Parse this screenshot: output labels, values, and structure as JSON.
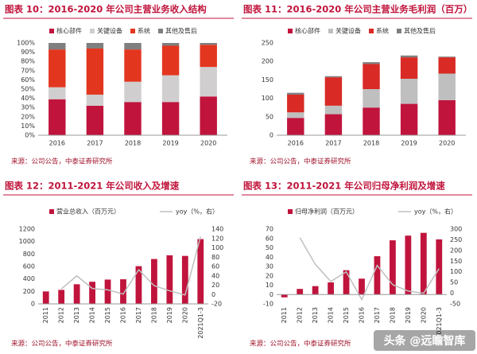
{
  "chart_data": [
    {
      "type": "bar",
      "stacked": true,
      "title": "图表 10：2016-2020 年公司主营业务收入结构",
      "source": "来源：公司公告，中泰证券研究所",
      "categories": [
        "2016",
        "2017",
        "2018",
        "2019",
        "2020"
      ],
      "series": [
        {
          "name": "核心部件",
          "color": "#c0143c",
          "values": [
            39,
            32,
            36,
            36,
            42
          ]
        },
        {
          "name": "关键设备",
          "color": "#d0cece",
          "values": [
            13,
            12,
            22,
            29,
            32
          ]
        },
        {
          "name": "系统",
          "color": "#e3361f",
          "values": [
            41,
            50,
            35,
            32,
            24
          ]
        },
        {
          "name": "其他及售后",
          "color": "#7f7f7f",
          "values": [
            7,
            6,
            7,
            3,
            2
          ]
        }
      ],
      "ylim": [
        0,
        100
      ],
      "yticks": [
        {
          "value": 0,
          "label": "0%"
        },
        {
          "value": 10,
          "label": "10%"
        },
        {
          "value": 20,
          "label": "20%"
        },
        {
          "value": 30,
          "label": "30%"
        },
        {
          "value": 40,
          "label": "40%"
        },
        {
          "value": 50,
          "label": "50%"
        },
        {
          "value": 60,
          "label": "60%"
        },
        {
          "value": 70,
          "label": "70%"
        },
        {
          "value": 80,
          "label": "80%"
        },
        {
          "value": 90,
          "label": "90%"
        },
        {
          "value": 100,
          "label": "100%"
        }
      ],
      "grid": false
    },
    {
      "type": "bar",
      "stacked": true,
      "title": "图表 11：2016-2020 年公司主营业务毛利润（百万）",
      "source": "来源：公司公告，中泰证券研究所",
      "categories": [
        "2016",
        "2017",
        "2018",
        "2019",
        "2020"
      ],
      "series": [
        {
          "name": "核心部件",
          "color": "#c0143c",
          "values": [
            47,
            57,
            75,
            85,
            95
          ]
        },
        {
          "name": "关键设备",
          "color": "#bfbfbf",
          "values": [
            15,
            23,
            50,
            68,
            72
          ]
        },
        {
          "name": "系统",
          "color": "#d92a25",
          "values": [
            48,
            77,
            68,
            58,
            44
          ]
        },
        {
          "name": "其他及售后",
          "color": "#7f7f7f",
          "values": [
            5,
            3,
            5,
            5,
            2
          ]
        }
      ],
      "ylim": [
        0,
        250
      ],
      "yticks": [
        0,
        50,
        100,
        150,
        200,
        250
      ],
      "grid": false
    },
    {
      "type": "combo",
      "title": "图表 12：2011-2021 年公司收入及增速",
      "source": "来源：公司公告，中泰证券研究所",
      "categories": [
        "2011",
        "2012",
        "2013",
        "2014",
        "2015",
        "2016",
        "2017",
        "2018",
        "2019",
        "2020",
        "2021Q1-3"
      ],
      "series": [
        {
          "name": "营业总收入（百万元）",
          "mark": "bar",
          "color": "#c0143c",
          "values": [
            200,
            225,
            315,
            355,
            390,
            395,
            605,
            720,
            780,
            770,
            1040
          ]
        },
        {
          "name": "yoy（%，右）",
          "mark": "line",
          "axis": "y2",
          "color": "#bfbfbf",
          "values": [
            null,
            12,
            40,
            13,
            10,
            1,
            53,
            19,
            8,
            -1,
            124
          ]
        }
      ],
      "ylim": [
        0,
        1200
      ],
      "yticks": [
        0,
        200,
        400,
        600,
        800,
        1000,
        1200
      ],
      "y2lim": [
        -20,
        140
      ],
      "y2ticks": [
        -20,
        0,
        20,
        40,
        60,
        80,
        100,
        120,
        140
      ],
      "grid": false
    },
    {
      "type": "combo",
      "title": "图表 13：2011-2021 年公司归母净利润及增速",
      "source": "来源：公司公告，中泰证券研究所",
      "categories": [
        "2011",
        "2012",
        "2013",
        "2014",
        "2015",
        "2016",
        "2017",
        "2018",
        "2019",
        "2020",
        "2021Q1-3"
      ],
      "series": [
        {
          "name": "归母净利润（百万元）",
          "mark": "bar",
          "color": "#c0143c",
          "values": [
            -3,
            6,
            9,
            13,
            26,
            17,
            41,
            58,
            63,
            66,
            59
          ]
        },
        {
          "name": "yoy（%，右）",
          "mark": "line",
          "axis": "y2",
          "color": "#bfbfbf",
          "values": [
            null,
            260,
            135,
            55,
            100,
            -30,
            130,
            40,
            10,
            0,
            115
          ]
        }
      ],
      "ylim": [
        -10,
        70
      ],
      "yticks": [
        -10,
        0,
        10,
        20,
        30,
        40,
        50,
        60,
        70
      ],
      "y2lim": [
        -50,
        300
      ],
      "y2ticks": [
        -50,
        0,
        50,
        100,
        150,
        200,
        250,
        300
      ],
      "grid": false
    }
  ],
  "watermark": "头条 @远瞻智库"
}
